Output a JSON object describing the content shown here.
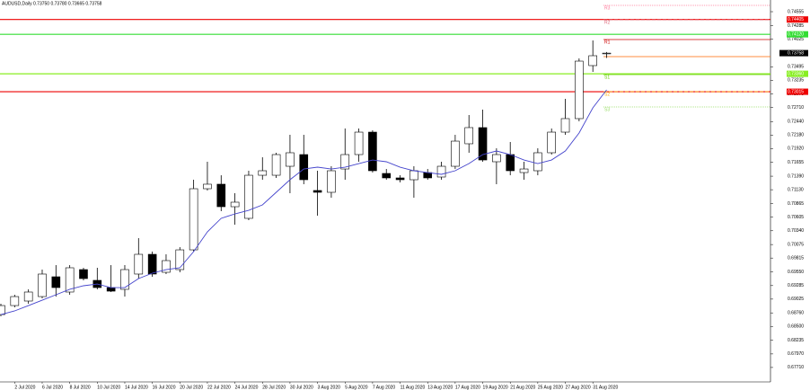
{
  "chart_data": {
    "type": "candlestick",
    "title": "AUDUSD,Daily 0.73750 0.73780 0.73665 0.73758",
    "categories": [
      null,
      "2 Jul 2020",
      null,
      "6 Jul 2020",
      null,
      "8 Jul 2020",
      null,
      "10 Jul 2020",
      null,
      "14 Jul 2020",
      null,
      "16 Jul 2020",
      null,
      "20 Jul 2020",
      null,
      "22 Jul 2020",
      null,
      "24 Jul 2020",
      null,
      "28 Jul 2020",
      null,
      "30 Jul 2020",
      null,
      "3 Aug 2020",
      null,
      "5 Aug 2020",
      null,
      "7 Aug 2020",
      null,
      "11 Aug 2020",
      null,
      "13 Aug 2020",
      null,
      "17 Aug 2020",
      null,
      "19 Aug 2020",
      null,
      "21 Aug 2020",
      null,
      "25 Aug 2020",
      null,
      "27 Aug 2020",
      null,
      "31 Aug 2020",
      null
    ],
    "open": [
      0.68728,
      0.68901,
      0.68988,
      0.69074,
      0.69455,
      0.69161,
      0.69593,
      0.69386,
      0.69247,
      0.69213,
      0.69507,
      0.69887,
      0.69541,
      0.69593,
      0.69973,
      0.71149,
      0.71236,
      0.70803,
      0.70579,
      0.71408,
      0.71408,
      0.71581,
      0.71806,
      0.71115,
      0.7108,
      0.71529,
      0.71806,
      0.72238,
      0.71443,
      0.71357,
      0.71322,
      0.7146,
      0.71374,
      0.71581,
      0.72014,
      0.72325,
      0.71668,
      0.71806,
      0.7146,
      0.71495,
      0.71841,
      0.72238,
      0.72498,
      0.73518,
      0.7375
    ],
    "high": [
      0.68936,
      0.69109,
      0.69213,
      0.69593,
      0.69679,
      0.69679,
      0.69628,
      0.69628,
      0.69679,
      0.69679,
      0.70198,
      0.6994,
      0.69887,
      0.70025,
      0.71322,
      0.71668,
      0.71408,
      0.71063,
      0.71495,
      0.71754,
      0.71841,
      0.72186,
      0.72186,
      0.71495,
      0.71581,
      0.72308,
      0.72308,
      0.72272,
      0.71529,
      0.71408,
      0.71581,
      0.71529,
      0.71668,
      0.72186,
      0.72567,
      0.72671,
      0.71927,
      0.72048,
      0.71668,
      0.71927,
      0.72308,
      0.72878,
      0.73656,
      0.74002,
      0.7378
    ],
    "low": [
      0.68694,
      0.68867,
      0.68936,
      0.6904,
      0.69074,
      0.69109,
      0.69386,
      0.69213,
      0.69161,
      0.69074,
      0.6942,
      0.69455,
      0.69507,
      0.69541,
      0.6994,
      0.71115,
      0.70717,
      0.70457,
      0.70545,
      0.71322,
      0.71357,
      0.71063,
      0.71236,
      0.7063,
      0.70976,
      0.71322,
      0.71668,
      0.7146,
      0.71322,
      0.7127,
      0.70976,
      0.71322,
      0.71322,
      0.71529,
      0.71841,
      0.71668,
      0.71236,
      0.71408,
      0.71322,
      0.71408,
      0.71806,
      0.72186,
      0.72446,
      0.73397,
      0.73665
    ],
    "close": [
      0.68901,
      0.69074,
      0.69161,
      0.69507,
      0.69247,
      0.69628,
      0.6942,
      0.69247,
      0.69178,
      0.69593,
      0.69887,
      0.69507,
      0.69766,
      0.69973,
      0.71149,
      0.71236,
      0.70803,
      0.7089,
      0.71408,
      0.71495,
      0.71806,
      0.71841,
      0.71322,
      0.7108,
      0.71495,
      0.71806,
      0.72238,
      0.71495,
      0.71357,
      0.71322,
      0.71495,
      0.71357,
      0.71581,
      0.72065,
      0.72325,
      0.71702,
      0.71806,
      0.71495,
      0.71529,
      0.71841,
      0.72238,
      0.72498,
      0.73604,
      0.73708,
      0.73758
    ],
    "up_color": "#ffffff",
    "down_color": "#000000",
    "edge_color": "#000000",
    "overlay": {
      "color": "#4444cc",
      "values": [
        0.68728,
        0.68798,
        0.68901,
        0.69005,
        0.69109,
        0.69213,
        0.69282,
        0.69316,
        0.69247,
        0.69247,
        0.6942,
        0.69524,
        0.69593,
        0.69628,
        0.69939,
        0.70319,
        0.70579,
        0.70665,
        0.70734,
        0.70838,
        0.7108,
        0.71322,
        0.71529,
        0.71564,
        0.71529,
        0.71564,
        0.71633,
        0.71702,
        0.71668,
        0.71564,
        0.71495,
        0.7146,
        0.71426,
        0.71495,
        0.71633,
        0.71806,
        0.71875,
        0.71806,
        0.71702,
        0.71633,
        0.71702,
        0.71875,
        0.72221,
        0.72705,
        0.73051
      ]
    },
    "ylim": [
      0.67432,
      0.7478
    ],
    "yticks": [
      0.74555,
      0.74285,
      0.74025,
      0.73495,
      0.73235,
      {
        "value": 0.7297,
        "label": "0.72970"
      },
      {
        "value": 0.7271,
        "label": "0.72710"
      },
      {
        "value": 0.7244,
        "label": "0.72440"
      },
      {
        "value": 0.7218,
        "label": "0.72180"
      },
      {
        "value": 0.7192,
        "label": "0.71920"
      },
      0.71655,
      {
        "value": 0.7139,
        "label": "0.71390"
      },
      {
        "value": 0.7113,
        "label": "0.71130"
      },
      0.70865,
      0.70605,
      {
        "value": 0.7034,
        "label": "0.70340"
      },
      0.70075,
      0.69815,
      {
        "value": 0.6955,
        "label": "0.69550"
      },
      0.69285,
      0.69025,
      {
        "value": 0.6876,
        "label": "0.68760"
      },
      {
        "value": 0.685,
        "label": "0.68500"
      },
      0.68235,
      {
        "value": 0.6797,
        "label": "0.67970"
      },
      {
        "value": 0.6771,
        "label": "0.67710"
      }
    ],
    "levels": [
      {
        "value": 0.74405,
        "color": "#ee0000"
      },
      {
        "value": 0.7412,
        "label": "0.74120",
        "color": "#33dd33"
      },
      {
        "value": 0.7336,
        "label": "0.73360",
        "color": "#88ee22"
      },
      {
        "value": 0.73015,
        "color": "#ee0000"
      }
    ],
    "pivots": [
      {
        "name": "R3",
        "value": 0.74676,
        "color": "#ff7799",
        "dash": "1,1"
      },
      {
        "name": "R2",
        "value": 0.744,
        "color": "#dd6677",
        "dash": "4,2"
      },
      {
        "name": "R1",
        "value": 0.74019,
        "color": "#cc0000",
        "dash": "none"
      },
      {
        "value": 0.73691,
        "color": "#ff6600",
        "dash": "none"
      },
      {
        "name": "S1",
        "value": 0.73345,
        "color": "#66cc00",
        "dash": "none"
      },
      {
        "name": "S2",
        "value": 0.73017,
        "color": "#ffaa00",
        "dash": "4,2"
      },
      {
        "name": "S3",
        "value": 0.72723,
        "color": "#99dd66",
        "dash": "1,1"
      }
    ],
    "current_price": {
      "value": 0.73758
    }
  }
}
